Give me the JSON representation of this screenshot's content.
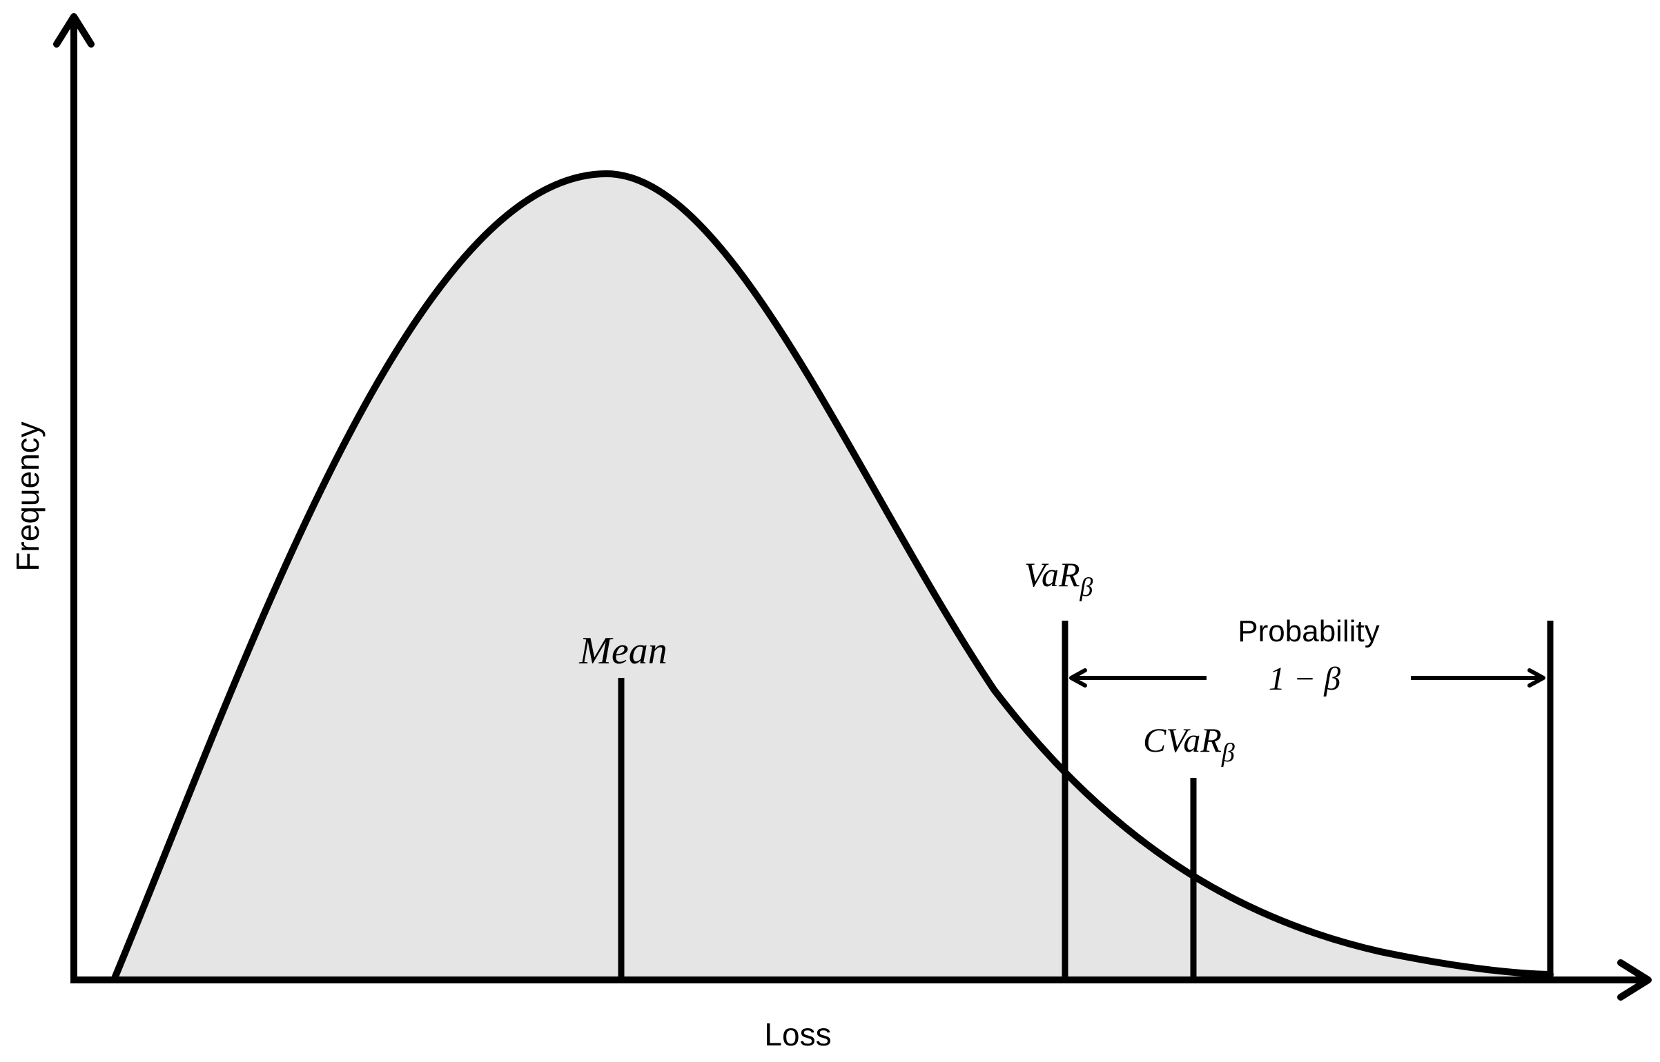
{
  "axes": {
    "y_label": "Frequency",
    "x_label": "Loss"
  },
  "markers": {
    "mean": {
      "label": "Mean"
    },
    "var": {
      "label_main": "VaR",
      "label_sub": "β"
    },
    "cvar": {
      "label_main": "CVaR",
      "label_sub": "β"
    }
  },
  "tail_span": {
    "label_line1": "Probability",
    "label_line2": "1 − β"
  },
  "colors": {
    "curve_fill": "#e6e5e6",
    "stroke": "#000000",
    "background": "#ffffff"
  }
}
